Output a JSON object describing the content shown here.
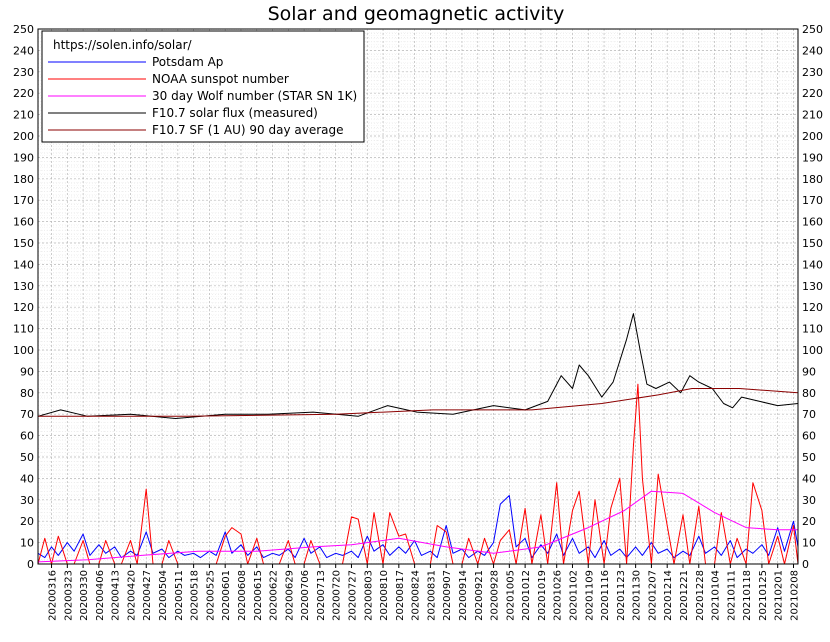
{
  "chart_data": {
    "type": "line",
    "title": "Solar and geomagnetic activity",
    "source": "https://solen.info/solar/",
    "ylim": [
      0,
      250
    ],
    "yticks": [
      0,
      10,
      20,
      30,
      40,
      50,
      60,
      70,
      80,
      90,
      100,
      110,
      120,
      130,
      140,
      150,
      160,
      170,
      180,
      190,
      200,
      210,
      220,
      230,
      240,
      250
    ],
    "grid": true,
    "legend_position": "top-left",
    "x_start": "2020-03-10",
    "x_end": "2021-02-10",
    "x_tick_labels": [
      "20200316",
      "20200323",
      "20200330",
      "20200406",
      "20200413",
      "20200420",
      "20200427",
      "20200504",
      "20200511",
      "20200518",
      "20200525",
      "20200601",
      "20200608",
      "20200615",
      "20200622",
      "20200629",
      "20200706",
      "20200713",
      "20200720",
      "20200727",
      "20200803",
      "20200810",
      "20200817",
      "20200824",
      "20200831",
      "20200907",
      "20200914",
      "20200921",
      "20200928",
      "20201005",
      "20201012",
      "20201019",
      "20201026",
      "20201102",
      "20201109",
      "20201116",
      "20201123",
      "20201130",
      "20201207",
      "20201214",
      "20201221",
      "20201228",
      "20210104",
      "20210111",
      "20210118",
      "20210125",
      "20210201",
      "20210208"
    ],
    "series": [
      {
        "name": "Potsdam Ap",
        "color": "#0000ff",
        "x": [
          "2020-03-10",
          "2020-03-13",
          "2020-03-16",
          "2020-03-19",
          "2020-03-23",
          "2020-03-26",
          "2020-03-30",
          "2020-04-02",
          "2020-04-06",
          "2020-04-09",
          "2020-04-13",
          "2020-04-16",
          "2020-04-20",
          "2020-04-23",
          "2020-04-27",
          "2020-04-30",
          "2020-05-04",
          "2020-05-07",
          "2020-05-11",
          "2020-05-14",
          "2020-05-18",
          "2020-05-21",
          "2020-05-25",
          "2020-05-28",
          "2020-06-01",
          "2020-06-04",
          "2020-06-08",
          "2020-06-11",
          "2020-06-15",
          "2020-06-18",
          "2020-06-22",
          "2020-06-25",
          "2020-06-29",
          "2020-07-02",
          "2020-07-06",
          "2020-07-09",
          "2020-07-13",
          "2020-07-16",
          "2020-07-20",
          "2020-07-23",
          "2020-07-27",
          "2020-07-30",
          "2020-08-03",
          "2020-08-06",
          "2020-08-10",
          "2020-08-13",
          "2020-08-17",
          "2020-08-20",
          "2020-08-24",
          "2020-08-27",
          "2020-08-31",
          "2020-09-03",
          "2020-09-07",
          "2020-09-10",
          "2020-09-14",
          "2020-09-17",
          "2020-09-21",
          "2020-09-24",
          "2020-09-28",
          "2020-10-01",
          "2020-10-05",
          "2020-10-08",
          "2020-10-12",
          "2020-10-15",
          "2020-10-19",
          "2020-10-22",
          "2020-10-26",
          "2020-10-29",
          "2020-11-02",
          "2020-11-05",
          "2020-11-09",
          "2020-11-12",
          "2020-11-16",
          "2020-11-19",
          "2020-11-23",
          "2020-11-26",
          "2020-11-30",
          "2020-12-03",
          "2020-12-07",
          "2020-12-10",
          "2020-12-14",
          "2020-12-17",
          "2020-12-21",
          "2020-12-24",
          "2020-12-28",
          "2020-12-31",
          "2021-01-04",
          "2021-01-07",
          "2021-01-11",
          "2021-01-14",
          "2021-01-18",
          "2021-01-21",
          "2021-01-25",
          "2021-01-28",
          "2021-02-01",
          "2021-02-04",
          "2021-02-08",
          "2021-02-10"
        ],
        "values": [
          5,
          3,
          8,
          4,
          10,
          6,
          14,
          4,
          9,
          5,
          8,
          3,
          6,
          4,
          15,
          5,
          7,
          3,
          6,
          4,
          5,
          3,
          6,
          4,
          15,
          5,
          9,
          4,
          8,
          3,
          5,
          4,
          7,
          3,
          12,
          5,
          8,
          3,
          5,
          4,
          6,
          3,
          13,
          6,
          9,
          4,
          8,
          5,
          11,
          4,
          6,
          3,
          18,
          5,
          7,
          3,
          6,
          4,
          10,
          28,
          32,
          8,
          12,
          3,
          9,
          5,
          14,
          4,
          12,
          5,
          8,
          3,
          11,
          4,
          7,
          3,
          8,
          4,
          10,
          5,
          7,
          3,
          6,
          4,
          13,
          5,
          8,
          4,
          11,
          3,
          7,
          5,
          9,
          4,
          17,
          6,
          20,
          8
        ]
      },
      {
        "name": "NOAA sunspot number",
        "color": "#ff0000",
        "x": [
          "2020-03-10",
          "2020-03-13",
          "2020-03-16",
          "2020-03-19",
          "2020-03-23",
          "2020-03-26",
          "2020-03-30",
          "2020-04-02",
          "2020-04-06",
          "2020-04-09",
          "2020-04-13",
          "2020-04-16",
          "2020-04-20",
          "2020-04-23",
          "2020-04-27",
          "2020-04-30",
          "2020-05-04",
          "2020-05-07",
          "2020-05-11",
          "2020-05-14",
          "2020-05-18",
          "2020-05-21",
          "2020-05-25",
          "2020-05-28",
          "2020-06-01",
          "2020-06-04",
          "2020-06-08",
          "2020-06-11",
          "2020-06-15",
          "2020-06-18",
          "2020-06-22",
          "2020-06-25",
          "2020-06-29",
          "2020-07-02",
          "2020-07-06",
          "2020-07-09",
          "2020-07-13",
          "2020-07-16",
          "2020-07-20",
          "2020-07-23",
          "2020-07-27",
          "2020-07-30",
          "2020-08-03",
          "2020-08-06",
          "2020-08-10",
          "2020-08-13",
          "2020-08-17",
          "2020-08-20",
          "2020-08-24",
          "2020-08-27",
          "2020-08-31",
          "2020-09-03",
          "2020-09-07",
          "2020-09-10",
          "2020-09-14",
          "2020-09-17",
          "2020-09-21",
          "2020-09-24",
          "2020-09-28",
          "2020-10-01",
          "2020-10-05",
          "2020-10-08",
          "2020-10-12",
          "2020-10-15",
          "2020-10-19",
          "2020-10-22",
          "2020-10-26",
          "2020-10-29",
          "2020-11-02",
          "2020-11-05",
          "2020-11-09",
          "2020-11-12",
          "2020-11-16",
          "2020-11-19",
          "2020-11-23",
          "2020-11-26",
          "2020-11-29",
          "2020-12-01",
          "2020-12-03",
          "2020-12-07",
          "2020-12-10",
          "2020-12-14",
          "2020-12-17",
          "2020-12-21",
          "2020-12-24",
          "2020-12-28",
          "2020-12-31",
          "2021-01-04",
          "2021-01-07",
          "2021-01-11",
          "2021-01-14",
          "2021-01-18",
          "2021-01-21",
          "2021-01-25",
          "2021-01-28",
          "2021-02-01",
          "2021-02-04",
          "2021-02-08",
          "2021-02-10"
        ],
        "values": [
          0,
          12,
          0,
          13,
          0,
          0,
          11,
          0,
          0,
          11,
          0,
          0,
          11,
          0,
          35,
          0,
          0,
          11,
          0,
          0,
          0,
          0,
          0,
          0,
          13,
          17,
          14,
          0,
          12,
          0,
          0,
          0,
          11,
          0,
          0,
          11,
          0,
          0,
          0,
          0,
          22,
          21,
          0,
          24,
          0,
          24,
          13,
          14,
          0,
          0,
          0,
          18,
          15,
          0,
          0,
          12,
          0,
          12,
          0,
          11,
          16,
          0,
          26,
          0,
          23,
          0,
          38,
          0,
          25,
          34,
          0,
          30,
          0,
          26,
          40,
          0,
          55,
          84,
          40,
          0,
          42,
          18,
          0,
          23,
          0,
          27,
          0,
          0,
          24,
          0,
          12,
          0,
          38,
          25,
          0,
          13,
          0,
          18,
          0
        ]
      },
      {
        "name": "30 day Wolf number (STAR SN 1K)",
        "color": "#ff00ff",
        "x": [
          "2020-03-10",
          "2020-04-01",
          "2020-04-25",
          "2020-05-20",
          "2020-06-15",
          "2020-07-10",
          "2020-07-27",
          "2020-08-17",
          "2020-09-07",
          "2020-09-28",
          "2020-10-19",
          "2020-11-09",
          "2020-11-25",
          "2020-12-07",
          "2020-12-21",
          "2021-01-04",
          "2021-01-18",
          "2021-02-01",
          "2021-02-10"
        ],
        "values": [
          1,
          2,
          4,
          6,
          6,
          8,
          9,
          12,
          8,
          5,
          8,
          17,
          25,
          34,
          33,
          24,
          17,
          16,
          16
        ]
      },
      {
        "name": "F10.7 solar flux (measured)",
        "color": "#000000",
        "x": [
          "2020-03-10",
          "2020-03-20",
          "2020-04-01",
          "2020-04-20",
          "2020-05-10",
          "2020-06-01",
          "2020-06-20",
          "2020-07-10",
          "2020-07-30",
          "2020-08-12",
          "2020-08-25",
          "2020-09-10",
          "2020-09-28",
          "2020-10-12",
          "2020-10-22",
          "2020-10-28",
          "2020-11-02",
          "2020-11-05",
          "2020-11-09",
          "2020-11-15",
          "2020-11-20",
          "2020-11-26",
          "2020-11-29",
          "2020-12-02",
          "2020-12-05",
          "2020-12-09",
          "2020-12-15",
          "2020-12-20",
          "2020-12-24",
          "2020-12-28",
          "2021-01-03",
          "2021-01-08",
          "2021-01-12",
          "2021-01-16",
          "2021-01-24",
          "2021-02-01",
          "2021-02-10"
        ],
        "values": [
          69,
          72,
          69,
          70,
          68,
          70,
          70,
          71,
          69,
          74,
          71,
          70,
          74,
          72,
          76,
          88,
          82,
          93,
          88,
          78,
          85,
          105,
          117,
          100,
          84,
          82,
          85,
          80,
          88,
          85,
          82,
          75,
          73,
          78,
          76,
          74,
          75
        ]
      },
      {
        "name": "F10.7 SF (1 AU) 90 day average",
        "color": "#8b0000",
        "x": [
          "2020-03-10",
          "2020-05-15",
          "2020-07-20",
          "2020-09-01",
          "2020-10-15",
          "2020-11-15",
          "2020-12-10",
          "2020-12-25",
          "2021-01-15",
          "2021-02-10"
        ],
        "values": [
          69,
          69,
          70,
          72,
          72,
          75,
          79,
          82,
          82,
          80
        ]
      }
    ]
  }
}
